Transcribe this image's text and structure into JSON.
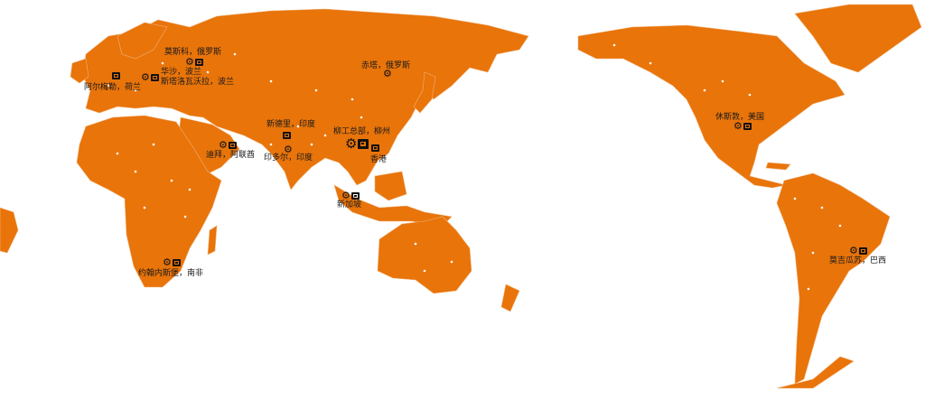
{
  "map": {
    "land_color": "#e8740a",
    "border_color": "#f3b27a",
    "city_dot_color": "#ffffff",
    "projection": "Pacific-centered world map",
    "locations": [
      {
        "label": "莫斯科，俄罗斯",
        "icons": [
          "gear-icon",
          "liugong-logo-icon"
        ]
      },
      {
        "label": "华沙，波兰",
        "icons": [
          "gear-icon",
          "liugong-logo-icon"
        ]
      },
      {
        "label": "斯塔洛瓦沃拉，波兰",
        "icons": []
      },
      {
        "label": "阿尔梅勒，荷兰",
        "icons": [
          "liugong-logo-icon"
        ]
      },
      {
        "label": "赤塔，俄罗斯",
        "icons": [
          "gear-icon"
        ]
      },
      {
        "label": "新德里，印度",
        "icons": [
          "liugong-logo-icon"
        ]
      },
      {
        "label": "迪拜，阿联酋",
        "icons": [
          "gear-icon",
          "liugong-logo-icon"
        ]
      },
      {
        "label": "印多尔，印度",
        "icons": [
          "gear-icon"
        ]
      },
      {
        "label": "柳工总部，柳州",
        "icons": [
          "gear-icon",
          "liugong-logo-icon"
        ]
      },
      {
        "label": "香港",
        "icons": [
          "liugong-logo-icon"
        ]
      },
      {
        "label": "新加坡",
        "icons": [
          "gear-icon",
          "liugong-logo-icon"
        ]
      },
      {
        "label": "约翰内斯堡，南非",
        "icons": [
          "gear-icon",
          "liugong-logo-icon"
        ]
      },
      {
        "label": "休斯敦，美国",
        "icons": [
          "gear-icon",
          "liugong-logo-icon"
        ]
      },
      {
        "label": "莫吉瓜苏，巴西",
        "icons": [
          "gear-icon",
          "liugong-logo-icon"
        ]
      }
    ]
  }
}
